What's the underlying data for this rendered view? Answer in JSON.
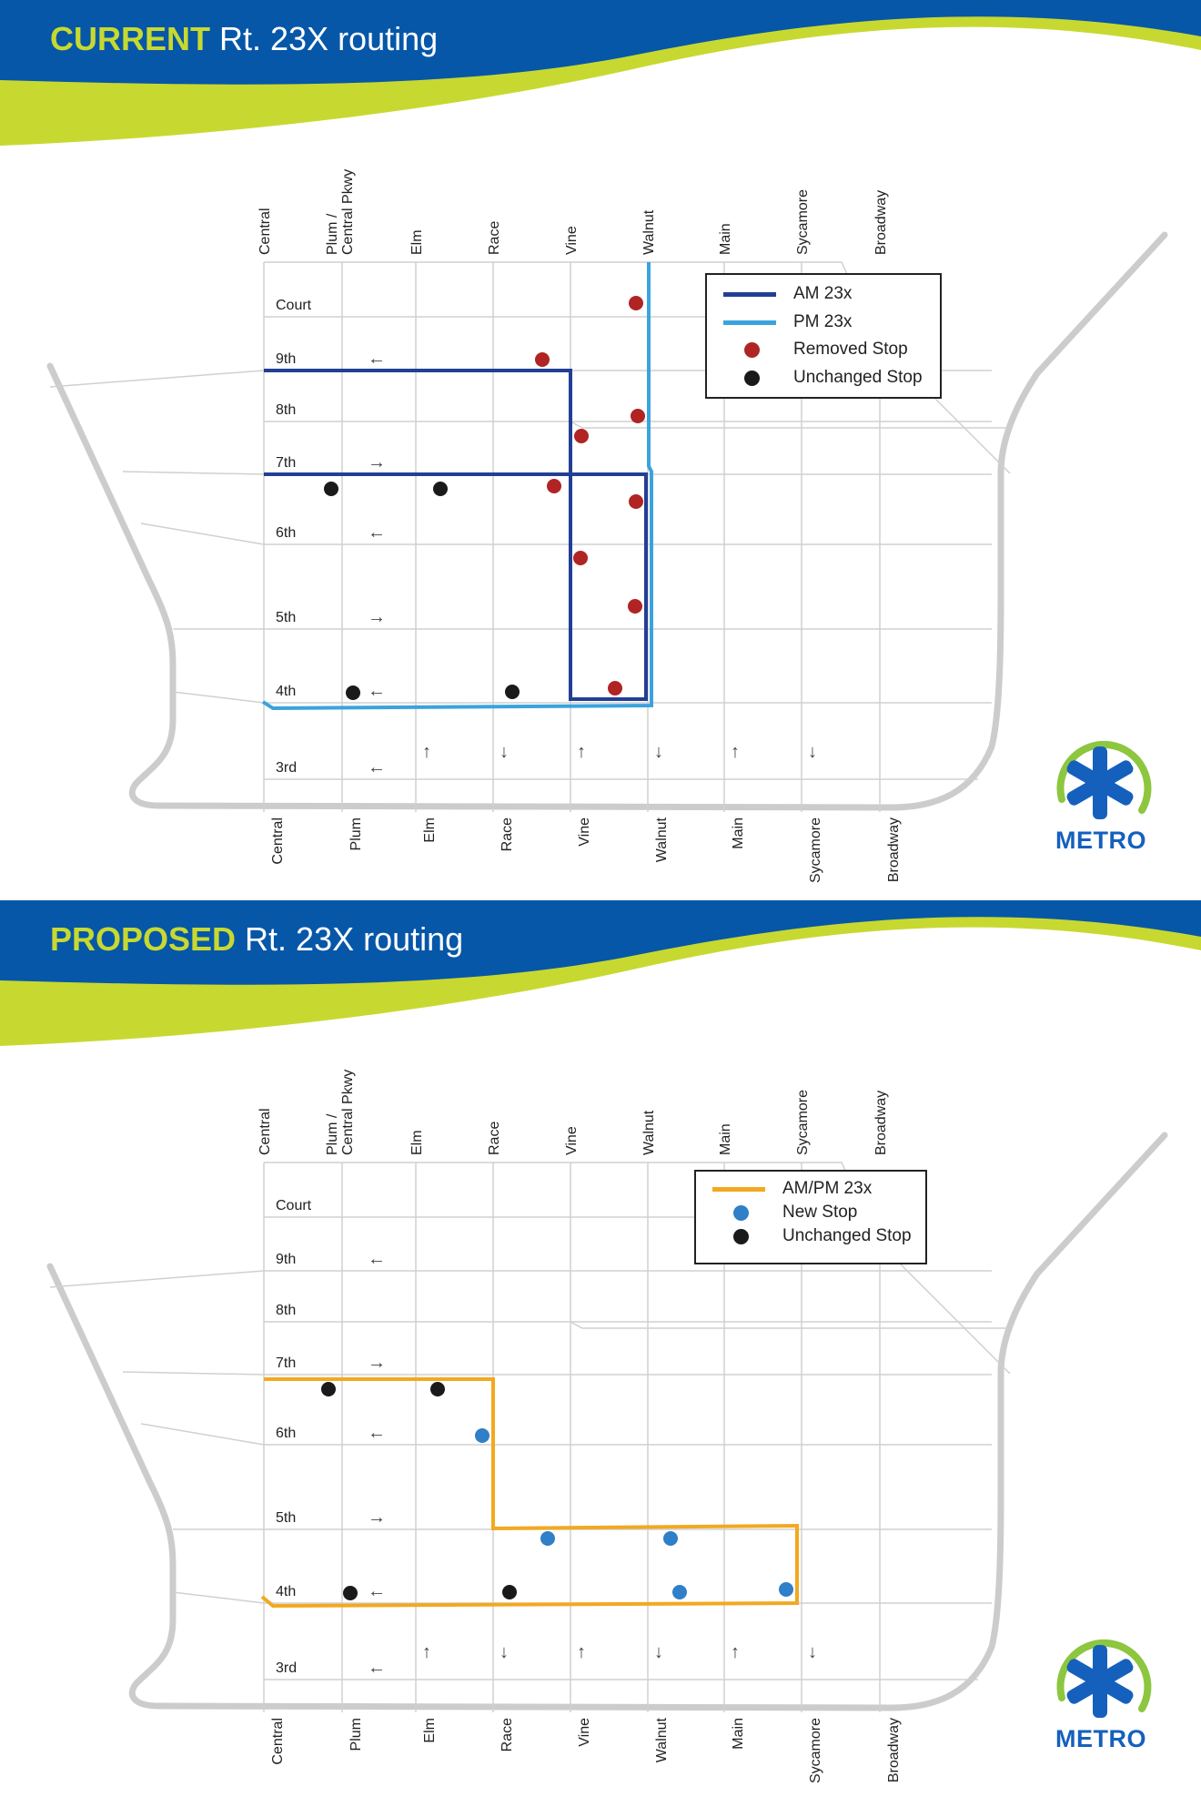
{
  "colors": {
    "header_blue": "#0657a8",
    "header_green": "#c7d930",
    "am_route": "#233f94",
    "pm_route": "#3ba3dc",
    "proposed_route": "#f2a920",
    "removed_stop": "#b02424",
    "unchanged_stop": "#1a1a1a",
    "new_stop": "#2f7fc9",
    "street": "#d0d0d0",
    "highway": "#cccccc",
    "metro_blue": "#1560bd",
    "metro_green": "#8dc63f"
  },
  "streets": {
    "ns_top": [
      "Central",
      "Plum / Central Pkwy",
      "Elm",
      "Race",
      "Vine",
      "Walnut",
      "Main",
      "Sycamore",
      "Broadway"
    ],
    "ns_bottom": [
      "Central",
      "Plum",
      "Elm",
      "Race",
      "Vine",
      "Walnut",
      "Main",
      "Sycamore",
      "Broadway"
    ],
    "ew": [
      "Court",
      "9th",
      "8th",
      "7th",
      "6th",
      "5th",
      "4th",
      "3rd"
    ]
  },
  "current": {
    "title_keyword": "CURRENT",
    "title_rest": " Rt. 23X routing",
    "legend": [
      {
        "type": "line",
        "color": "#233f94",
        "label": "AM 23x"
      },
      {
        "type": "line",
        "color": "#3ba3dc",
        "label": "PM 23x"
      },
      {
        "type": "dot",
        "color": "#b02424",
        "label": "Removed Stop"
      },
      {
        "type": "dot",
        "color": "#1a1a1a",
        "label": "Unchanged Stop"
      }
    ],
    "stops": {
      "removed": [
        [
          "Walnut",
          "Court"
        ],
        [
          "Vine",
          "9th"
        ],
        [
          "Walnut",
          "8th"
        ],
        [
          "Vine",
          "8th"
        ],
        [
          "Vine",
          "7th"
        ],
        [
          "Walnut",
          "7th"
        ],
        [
          "Vine",
          "6th"
        ],
        [
          "Walnut",
          "5th"
        ],
        [
          "Walnut",
          "4th"
        ]
      ],
      "unchanged": [
        [
          "Plum",
          "7th"
        ],
        [
          "Elm",
          "7th"
        ],
        [
          "Plum",
          "4th"
        ],
        [
          "Race",
          "4th"
        ]
      ]
    }
  },
  "proposed": {
    "title_keyword": "PROPOSED",
    "title_rest": " Rt. 23X routing",
    "legend": [
      {
        "type": "line",
        "color": "#f2a920",
        "label": "AM/PM 23x"
      },
      {
        "type": "dot",
        "color": "#2f7fc9",
        "label": "New Stop"
      },
      {
        "type": "dot",
        "color": "#1a1a1a",
        "label": "Unchanged Stop"
      }
    ],
    "stops": {
      "new": [
        [
          "Race",
          "6th"
        ],
        [
          "Vine",
          "5th"
        ],
        [
          "Walnut",
          "5th"
        ],
        [
          "Walnut",
          "4th"
        ],
        [
          "Sycamore",
          "4th"
        ]
      ],
      "unchanged": [
        [
          "Plum",
          "7th"
        ],
        [
          "Elm",
          "7th"
        ],
        [
          "Plum",
          "4th"
        ],
        [
          "Race",
          "4th"
        ]
      ]
    }
  },
  "logo": {
    "text": "METRO"
  }
}
